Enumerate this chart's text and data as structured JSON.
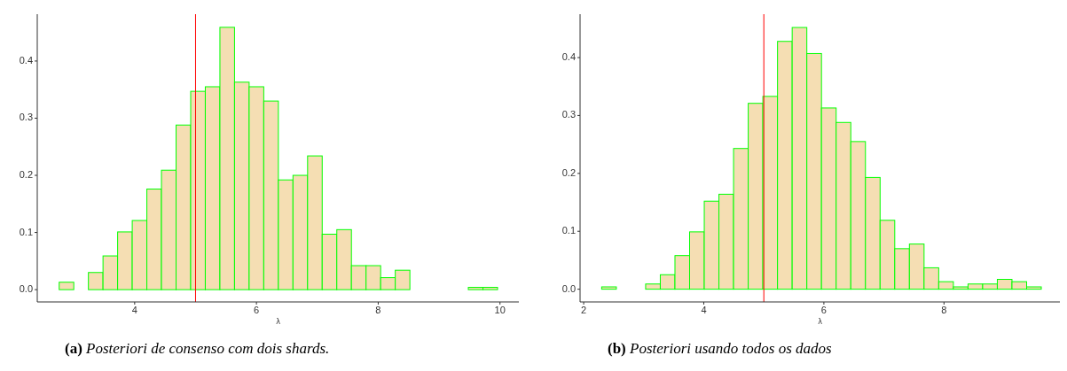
{
  "chart_data": [
    {
      "type": "histogram",
      "title": "(a) Posteriori de consenso com dois shards.",
      "xlabel": "λ",
      "bins": [
        2.76,
        3.0,
        3.24,
        3.48,
        3.72,
        3.96,
        4.2,
        4.44,
        4.68,
        4.92,
        5.16,
        5.4,
        5.64,
        5.88,
        6.12,
        6.36,
        6.6,
        6.84,
        7.08,
        7.32,
        7.56,
        7.8,
        8.04,
        8.28,
        8.52,
        8.76,
        9.0,
        9.24,
        9.48,
        9.72,
        9.96
      ],
      "values": [
        0.013,
        0,
        0.03,
        0.059,
        0.101,
        0.121,
        0.176,
        0.209,
        0.288,
        0.347,
        0.355,
        0.459,
        0.363,
        0.355,
        0.33,
        0.192,
        0.2,
        0.234,
        0.097,
        0.105,
        0.042,
        0.042,
        0.021,
        0.034,
        0,
        0,
        0,
        0,
        0.004,
        0.004
      ],
      "color": "#f5deb3",
      "xlim": [
        2.4,
        10.31
      ],
      "xticks": [
        4,
        6,
        8,
        10
      ],
      "ylim": [
        -0.0215,
        0.482
      ],
      "yticks": [
        {
          "value": 0,
          "label": "0.0"
        },
        0.1,
        0.2,
        0.3,
        0.4
      ],
      "ref_lines": [
        {
          "axis": "x",
          "value": 5,
          "color": "#ff0000"
        }
      ],
      "grid": false
    },
    {
      "type": "histogram",
      "title": "(b) Posteriori usando todos os dados",
      "xlabel": "λ",
      "bins": [
        2.3,
        2.544,
        2.788,
        3.032,
        3.276,
        3.52,
        3.764,
        4.008,
        4.252,
        4.496,
        4.74,
        4.984,
        5.228,
        5.472,
        5.716,
        5.96,
        6.204,
        6.448,
        6.692,
        6.936,
        7.18,
        7.424,
        7.668,
        7.912,
        8.156,
        8.4,
        8.644,
        8.888,
        9.132,
        9.376,
        9.62
      ],
      "values": [
        0.004,
        0,
        0,
        0.009,
        0.025,
        0.058,
        0.099,
        0.152,
        0.164,
        0.243,
        0.321,
        0.333,
        0.428,
        0.452,
        0.407,
        0.313,
        0.288,
        0.255,
        0.193,
        0.119,
        0.07,
        0.078,
        0.037,
        0.013,
        0.004,
        0.009,
        0.009,
        0.017,
        0.013,
        0.004
      ],
      "color": "#f5deb3",
      "xlim": [
        1.94,
        9.93
      ],
      "xticks": [
        2,
        4,
        6,
        8
      ],
      "ylim": [
        -0.022,
        0.475
      ],
      "yticks": [
        {
          "value": 0,
          "label": "0.0"
        },
        0.1,
        0.2,
        0.3,
        0.4
      ],
      "ref_lines": [
        {
          "axis": "x",
          "value": 5,
          "color": "#ff0000"
        }
      ],
      "grid": false
    }
  ]
}
